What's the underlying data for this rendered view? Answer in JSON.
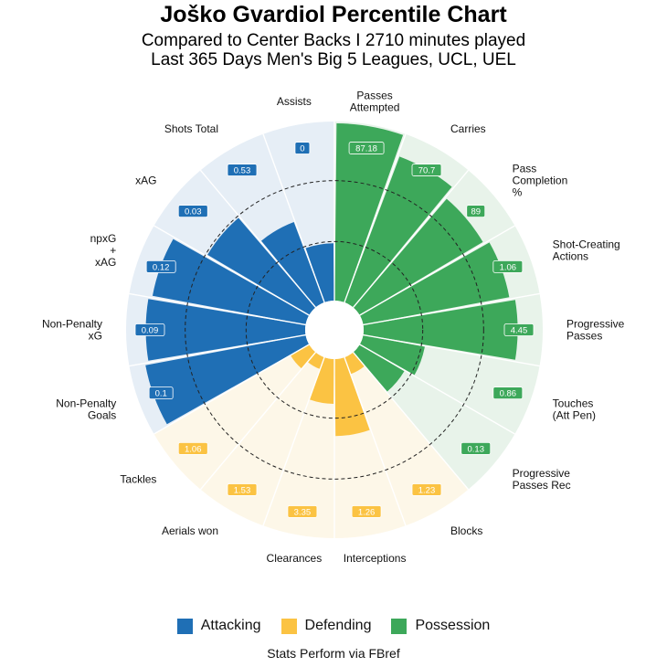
{
  "title": "Joško Gvardiol Percentile Chart",
  "subtitle_line1": "Compared to Center Backs I 2710 minutes played",
  "subtitle_line2": "Last 365 Days Men's Big 5 Leagues, UCL, UEL",
  "caption": "Stats Perform via FBref",
  "colors": {
    "Attacking": "#1f6fb5",
    "Defending": "#fbc343",
    "Possession": "#3da85a",
    "Attacking_bg": "#e6eef6",
    "Defending_bg": "#fdf7e8",
    "Possession_bg": "#e8f3ea"
  },
  "legend": [
    {
      "label": "Attacking",
      "key": "Attacking"
    },
    {
      "label": "Defending",
      "key": "Defending"
    },
    {
      "label": "Possession",
      "key": "Possession"
    }
  ],
  "chart_data": {
    "type": "radial-bar",
    "scale": "percentile",
    "rmax": 100,
    "gridlines": [
      33,
      67
    ],
    "legend_position": "bottom",
    "direction": "clockwise from top",
    "metrics": [
      {
        "label": "Passes Attempted",
        "category": "Possession",
        "value": 87.18,
        "percentile": 99
      },
      {
        "label": "Carries",
        "category": "Possession",
        "value": 70.7,
        "percentile": 87
      },
      {
        "label": "Pass Completion %",
        "category": "Possession",
        "value": 89,
        "percentile": 80
      },
      {
        "label": "Shot-Creating Actions",
        "category": "Possession",
        "value": 1.06,
        "percentile": 83
      },
      {
        "label": "Progressive Passes",
        "category": "Possession",
        "value": 4.45,
        "percentile": 86
      },
      {
        "label": "Touches (Att Pen)",
        "category": "Possession",
        "value": 0.86,
        "percentile": 35
      },
      {
        "label": "Progressive Passes Rec",
        "category": "Possession",
        "value": 0.13,
        "percentile": 29
      },
      {
        "label": "Blocks",
        "category": "Defending",
        "value": 1.23,
        "percentile": 10
      },
      {
        "label": "Interceptions",
        "category": "Defending",
        "value": 1.26,
        "percentile": 43
      },
      {
        "label": "Clearances",
        "category": "Defending",
        "value": 3.35,
        "percentile": 25
      },
      {
        "label": "Aerials won",
        "category": "Defending",
        "value": 1.53,
        "percentile": 7
      },
      {
        "label": "Tackles",
        "category": "Defending",
        "value": 1.06,
        "percentile": 12
      },
      {
        "label": "Non-Penalty Goals",
        "category": "Attacking",
        "value": 0.1,
        "percentile": 91
      },
      {
        "label": "Non-Penalty xG",
        "category": "Attacking",
        "value": 0.09,
        "percentile": 89
      },
      {
        "label": "npxG + xAG",
        "category": "Attacking",
        "value": 0.12,
        "percentile": 87
      },
      {
        "label": "xAG",
        "category": "Attacking",
        "value": 0.03,
        "percentile": 66
      },
      {
        "label": "Shots Total",
        "category": "Attacking",
        "value": 0.53,
        "percentile": 48
      },
      {
        "label": "Assists",
        "category": "Attacking",
        "value": 0,
        "percentile": 32
      }
    ]
  }
}
